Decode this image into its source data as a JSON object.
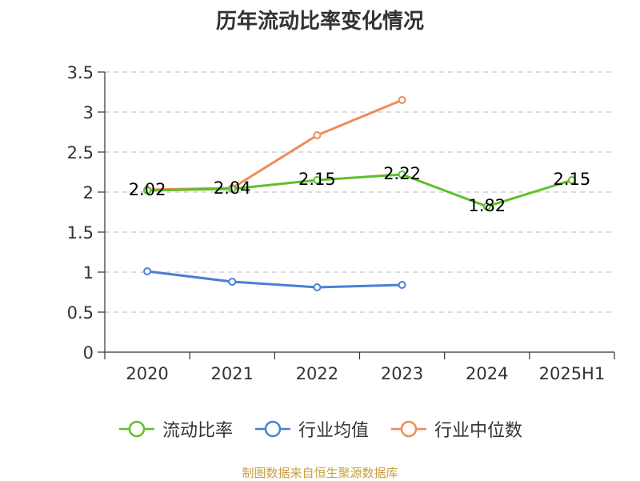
{
  "chart_data": {
    "type": "line",
    "title": "历年流动比率变化情况",
    "categories": [
      "2020",
      "2021",
      "2022",
      "2023",
      "2024",
      "2025H1"
    ],
    "ylim": [
      0,
      3.5
    ],
    "yticks": [
      "0",
      "0.5",
      "1",
      "1.5",
      "2",
      "2.5",
      "3",
      "3.5"
    ],
    "grid": true,
    "legend_position": "bottom",
    "series": [
      {
        "name": "流动比率",
        "color": "#5fbf2a",
        "values": [
          2.02,
          2.04,
          2.15,
          2.22,
          1.82,
          2.15
        ],
        "labels": [
          "2.02",
          "2.04",
          "2.15",
          "2.22",
          "1.82",
          "2.15"
        ]
      },
      {
        "name": "行业均值",
        "color": "#4a7fd6",
        "values": [
          1.01,
          0.88,
          0.81,
          0.84,
          null,
          null
        ]
      },
      {
        "name": "行业中位数",
        "color": "#f08b57",
        "values": [
          2.03,
          2.05,
          2.71,
          3.15,
          null,
          null
        ]
      }
    ]
  },
  "source": "制图数据来自恒生聚源数据库"
}
